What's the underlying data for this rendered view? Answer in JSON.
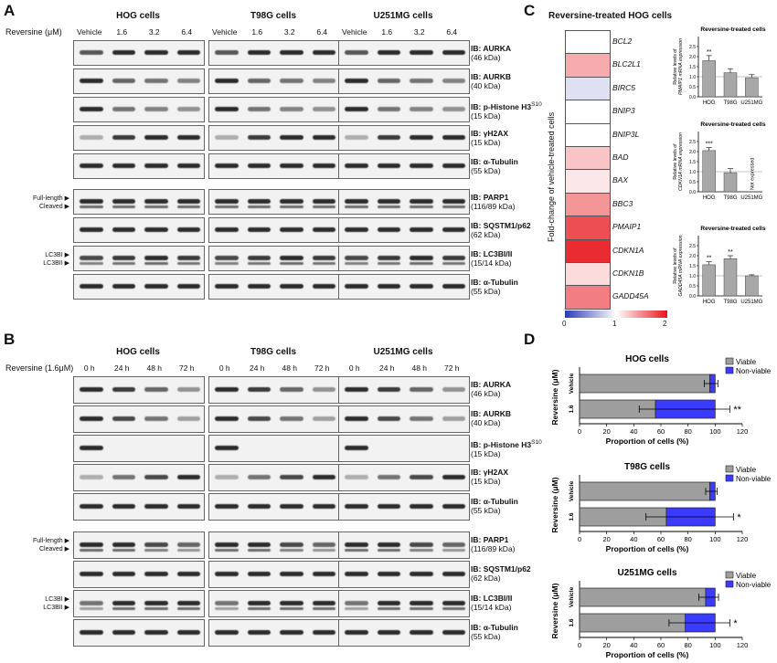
{
  "panel_labels": {
    "a": "A",
    "b": "B",
    "c": "C",
    "d": "D"
  },
  "panelA": {
    "conc_label": "Reversine (μM)",
    "cell_lines": [
      "HOG cells",
      "T98G cells",
      "U251MG cells"
    ],
    "lanes": [
      "Vehicle",
      "1.6",
      "3.2",
      "6.4"
    ],
    "upper_rows": [
      {
        "name": "IB: AURKA",
        "kda": "(46 kDa)",
        "pattern": [
          0.7,
          1,
          1,
          1
        ]
      },
      {
        "name": "IB: AURKB",
        "kda": "(40 kDa)",
        "pattern": [
          1,
          0.6,
          0.5,
          0.4
        ]
      },
      {
        "name": "IB: p-Histone H3",
        "sup": "S10",
        "kda": "(15 kDa)",
        "pattern": [
          1,
          0.5,
          0.4,
          0.3
        ]
      },
      {
        "name": "IB: γH2AX",
        "kda": "(15 kDa)",
        "pattern": [
          0.1,
          0.9,
          1,
          1
        ]
      },
      {
        "name": "IB: α-Tubulin",
        "kda": "(55 kDa)",
        "pattern": [
          1,
          1,
          1,
          1
        ]
      }
    ],
    "lower_rows": [
      {
        "name": "IB: PARP1",
        "kda": "(116/89 kDa)",
        "pattern": [
          1,
          1,
          1,
          1
        ]
      },
      {
        "name": "IB: SQSTM1/p62",
        "kda": "(62 kDa)",
        "pattern": [
          1,
          1,
          1,
          1
        ]
      },
      {
        "name": "IB: LC3BI/II",
        "kda": "(15/14 kDa)",
        "pattern": [
          0.8,
          0.9,
          1,
          0.9
        ]
      },
      {
        "name": "IB: α-Tubulin",
        "kda": "(55 kDa)",
        "pattern": [
          1,
          1,
          1,
          1
        ]
      }
    ],
    "side_parp": [
      "Full-length ▶",
      "Cleaved ▶"
    ],
    "side_lc3": [
      "LC3BI ▶",
      "LC3BII ▶"
    ]
  },
  "panelB": {
    "conc_label": "Reversine (1.6μM)",
    "cell_lines": [
      "HOG cells",
      "T98G cells",
      "U251MG cells"
    ],
    "lanes": [
      "0 h",
      "24 h",
      "48 h",
      "72 h"
    ],
    "upper_rows": [
      {
        "name": "IB: AURKA",
        "kda": "(46 kDa)",
        "pattern": [
          1,
          0.9,
          0.6,
          0.3
        ]
      },
      {
        "name": "IB: AURKB",
        "kda": "(40 kDa)",
        "pattern": [
          1,
          0.8,
          0.5,
          0.2
        ]
      },
      {
        "name": "IB: p-Histone H3",
        "sup": "S10",
        "kda": "(15 kDa)",
        "pattern": [
          1,
          0,
          0,
          0
        ]
      },
      {
        "name": "IB: γH2AX",
        "kda": "(15 kDa)",
        "pattern": [
          0.1,
          0.5,
          0.8,
          1
        ]
      },
      {
        "name": "IB: α-Tubulin",
        "kda": "(55 kDa)",
        "pattern": [
          1,
          1,
          1,
          1
        ]
      }
    ],
    "lower_rows": [
      {
        "name": "IB: PARP1",
        "kda": "(116/89 kDa)",
        "pattern": [
          1,
          1,
          0.8,
          0.6
        ]
      },
      {
        "name": "IB: SQSTM1/p62",
        "kda": "(62 kDa)",
        "pattern": [
          1,
          1,
          1,
          1
        ]
      },
      {
        "name": "IB: LC3BI/II",
        "kda": "(15/14 kDa)",
        "pattern": [
          0.5,
          1,
          1,
          1
        ]
      },
      {
        "name": "IB: α-Tubulin",
        "kda": "(55 kDa)",
        "pattern": [
          1,
          1,
          1,
          1
        ]
      }
    ],
    "side_parp": [
      "Full-length ▶",
      "Cleaved ▶"
    ],
    "side_lc3": [
      "LC3BI ▶",
      "LC3BII ▶"
    ]
  },
  "chart_data": [
    {
      "type": "heatmap",
      "title": "Reversine-treated HOG cells",
      "ylabel": "Fold-change of vehicle-treated cells",
      "genes": [
        "BCL2",
        "BLC2L1",
        "BIRC5",
        "BNIP3",
        "BNIP3L",
        "BAD",
        "BAX",
        "BBC3",
        "PMAIP1",
        "CDKN1A",
        "CDKN1B",
        "GADD45A"
      ],
      "values": [
        1.0,
        1.35,
        0.85,
        1.0,
        1.0,
        1.25,
        1.1,
        1.45,
        1.75,
        1.9,
        1.15,
        1.55
      ],
      "scale_ticks": [
        "0",
        "1",
        "2"
      ],
      "range": [
        0,
        2
      ]
    },
    {
      "type": "bar",
      "title": "Reversine-treated cells",
      "ylabel_lines": [
        "Relative levels of",
        "PMAIP1 mRNA expression"
      ],
      "categories": [
        "HOG",
        "T98G",
        "U251MG"
      ],
      "values": [
        1.8,
        1.2,
        0.95
      ],
      "errors": [
        0.25,
        0.2,
        0.15
      ],
      "sig": [
        "**",
        "",
        ""
      ],
      "ylim": [
        0,
        3
      ],
      "yticks": [
        "0.0",
        "0.5",
        "1.0",
        "1.5",
        "2.0",
        "2.5"
      ]
    },
    {
      "type": "bar",
      "title": "Reversine-treated cells",
      "ylabel_lines": [
        "Relative levels of",
        "CDKN1A mRNA expression"
      ],
      "categories": [
        "HOG",
        "T98G",
        "U251MG"
      ],
      "values": [
        2.05,
        0.95,
        null
      ],
      "errors": [
        0.15,
        0.2,
        0
      ],
      "sig": [
        "***",
        "",
        ""
      ],
      "note": "Not expressed",
      "ylim": [
        0,
        3
      ],
      "yticks": [
        "0.0",
        "0.5",
        "1.0",
        "1.5",
        "2.0",
        "2.5"
      ]
    },
    {
      "type": "bar",
      "title": "Reversine-treated cells",
      "ylabel_lines": [
        "Relative levels of",
        "GADD45A mRNA expression"
      ],
      "categories": [
        "HOG",
        "T98G",
        "U251MG"
      ],
      "values": [
        1.55,
        1.85,
        1.0
      ],
      "errors": [
        0.15,
        0.15,
        0.05
      ],
      "sig": [
        "**",
        "**",
        ""
      ],
      "ylim": [
        0,
        3
      ],
      "yticks": [
        "0.0",
        "0.5",
        "1.0",
        "1.5",
        "2.0",
        "2.5"
      ]
    },
    {
      "type": "bar",
      "orientation": "horizontal-stacked",
      "title": "HOG cells",
      "ylabel": "Reversine (μM)",
      "xlabel": "Proportion of cells (%)",
      "categories": [
        "Vehicle",
        "1.6"
      ],
      "series": [
        {
          "name": "Viable",
          "values": [
            96,
            56
          ]
        },
        {
          "name": "Non-viable",
          "values": [
            4,
            44
          ]
        }
      ],
      "errors": [
        4,
        12
      ],
      "sig": [
        "",
        "**"
      ],
      "xticks": [
        "0",
        "20",
        "40",
        "60",
        "80",
        "100",
        "120"
      ],
      "xlim": [
        0,
        120
      ]
    },
    {
      "type": "bar",
      "orientation": "horizontal-stacked",
      "title": "T98G cells",
      "ylabel": "Reversine (μM)",
      "xlabel": "Proportion of cells (%)",
      "categories": [
        "Vehicle",
        "1.6"
      ],
      "series": [
        {
          "name": "Viable",
          "values": [
            96,
            64
          ]
        },
        {
          "name": "Non-viable",
          "values": [
            4,
            36
          ]
        }
      ],
      "errors": [
        3,
        15
      ],
      "sig": [
        "",
        "*"
      ],
      "xticks": [
        "0",
        "20",
        "40",
        "60",
        "80",
        "100",
        "120"
      ],
      "xlim": [
        0,
        120
      ]
    },
    {
      "type": "bar",
      "orientation": "horizontal-stacked",
      "title": "U251MG cells",
      "ylabel": "Reversine (μM)",
      "xlabel": "Proportion of cells (%)",
      "categories": [
        "Vehicle",
        "1.6"
      ],
      "series": [
        {
          "name": "Viable",
          "values": [
            93,
            78
          ]
        },
        {
          "name": "Non-viable",
          "values": [
            7,
            22
          ]
        }
      ],
      "errors": [
        5,
        12
      ],
      "sig": [
        "",
        "*"
      ],
      "xticks": [
        "0",
        "20",
        "40",
        "60",
        "80",
        "100",
        "120"
      ],
      "xlim": [
        0,
        120
      ]
    }
  ],
  "colors": {
    "viable": "#9e9e9e",
    "nonviable": "#3b3bff",
    "bar": "#a8a8a8",
    "heat_low": "#2b3bb5",
    "heat_mid": "#ffffff",
    "heat_high": "#e8141c"
  }
}
